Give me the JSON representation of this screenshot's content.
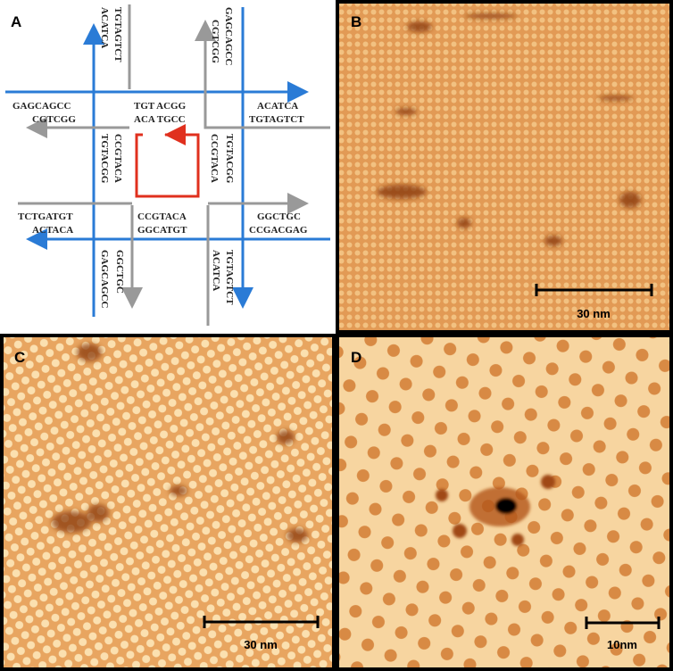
{
  "panels": {
    "a": "A",
    "b": "B",
    "c": "C",
    "d": "D"
  },
  "sequences": [
    "ACATCA",
    "TGTAGTCT",
    "GAGCAGCC",
    "CGTCGG",
    "GAGCAGCC",
    "CGTCGG",
    "TGT ACGG",
    "ACA TGCC",
    "ACATCA",
    "TGTAGTCT",
    "TGTACGG",
    "CCGTACA",
    "CCGTACA",
    "TGTACGG",
    "TCTGATGT",
    "ACTACA",
    "CCGTACA",
    "GGCATGT",
    "GGCTGC",
    "CCGACGAG",
    "GAGCAGCC",
    "GGCTGC",
    "ACATCA",
    "TGTAGTCT"
  ],
  "scale_bars": {
    "b": "30 nm",
    "c": "30 nm",
    "d": "10nm"
  }
}
